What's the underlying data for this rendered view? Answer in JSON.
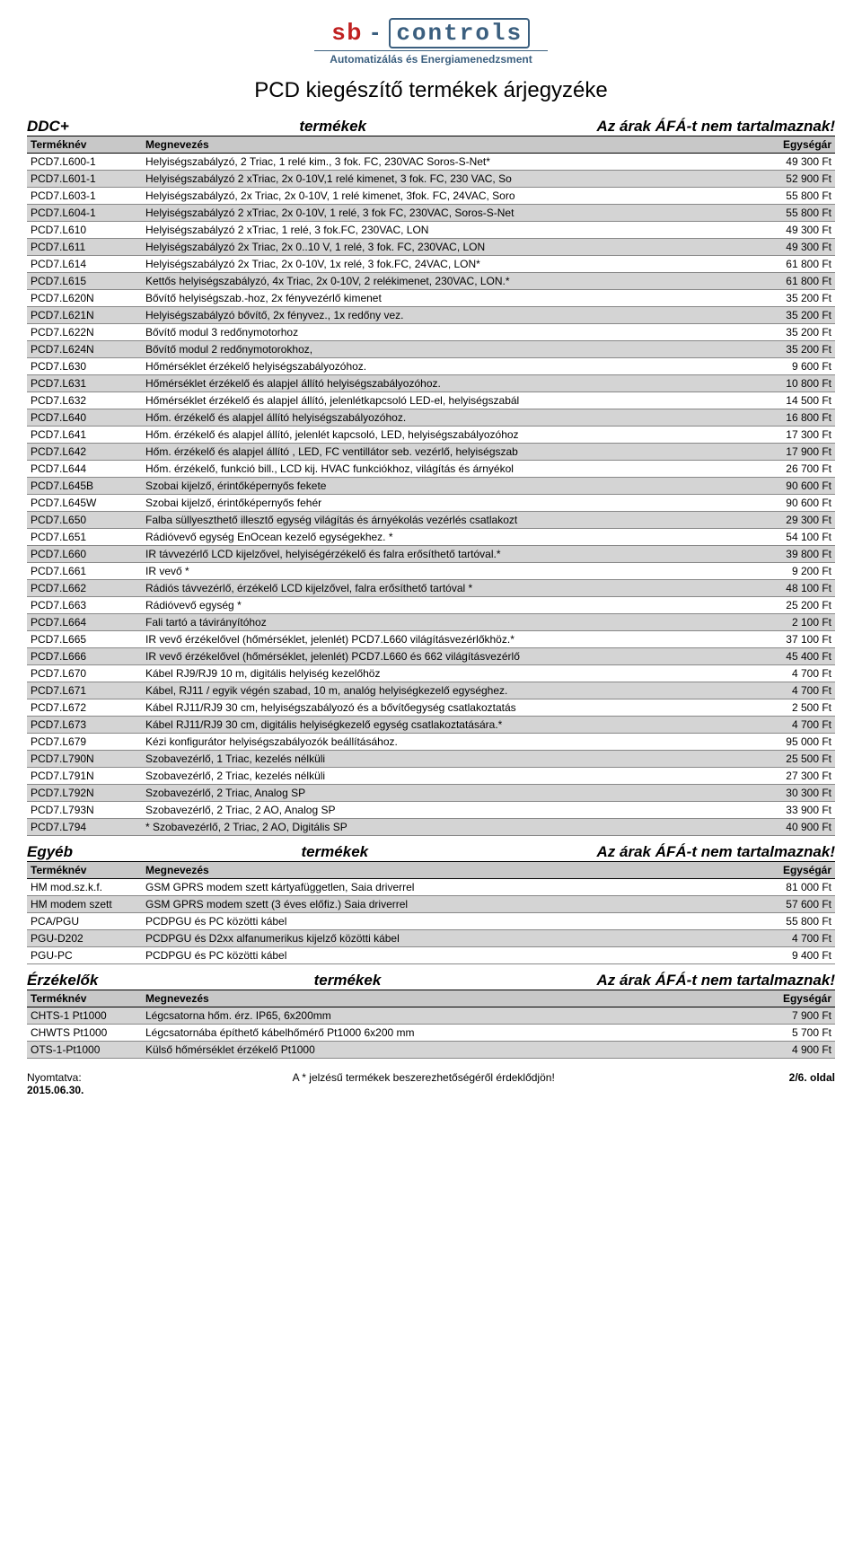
{
  "logo": {
    "sb": "sb",
    "dash": " - ",
    "controls": "controls",
    "tagline": "Automatizálás és Energiamenedzsment"
  },
  "page_title": "PCD kiegészítő termékek árjegyzéke",
  "column_headers": {
    "c0": "Terméknév",
    "c1": "Megnevezés",
    "c2": "Egységár"
  },
  "sections": [
    {
      "left": "DDC+",
      "mid": "termékek",
      "right": "Az árak ÁFÁ-t nem tartalmaznak!",
      "rows": [
        {
          "shade": false,
          "c0": "PCD7.L600-1",
          "c1": "Helyiségszabályzó, 2 Triac, 1 relé kim., 3 fok. FC, 230VAC Soros-S-Net*",
          "c2": "49 300 Ft"
        },
        {
          "shade": true,
          "c0": "PCD7.L601-1",
          "c1": "Helyiségszabályzó 2 xTriac, 2x 0-10V,1 relé kimenet, 3 fok. FC, 230 VAC, So",
          "c2": "52 900 Ft"
        },
        {
          "shade": false,
          "c0": "PCD7.L603-1",
          "c1": "Helyiségszabályzó, 2x Triac, 2x 0-10V, 1 relé kimenet, 3fok. FC, 24VAC, Soro",
          "c2": "55 800 Ft"
        },
        {
          "shade": true,
          "c0": "PCD7.L604-1",
          "c1": "Helyiségszabályzó 2 xTriac, 2x 0-10V, 1 relé, 3 fok FC, 230VAC, Soros-S-Net",
          "c2": "55 800 Ft"
        },
        {
          "shade": false,
          "c0": "PCD7.L610",
          "c1": "Helyiségszabályzó 2 xTriac, 1 relé, 3 fok.FC, 230VAC, LON",
          "c2": "49 300 Ft"
        },
        {
          "shade": true,
          "c0": "PCD7.L611",
          "c1": "Helyiségszabályzó 2x Triac, 2x 0..10 V, 1 relé, 3 fok. FC, 230VAC, LON",
          "c2": "49 300 Ft"
        },
        {
          "shade": false,
          "c0": "PCD7.L614",
          "c1": "Helyiségszabályzó 2x Triac, 2x 0-10V, 1x relé, 3 fok.FC, 24VAC, LON*",
          "c2": "61 800 Ft"
        },
        {
          "shade": true,
          "c0": "PCD7.L615",
          "c1": "Kettős helyiségszabályzó, 4x Triac, 2x 0-10V, 2 relékimenet, 230VAC, LON.*",
          "c2": "61 800 Ft"
        },
        {
          "shade": false,
          "c0": "PCD7.L620N",
          "c1": "Bővítő helyiségszab.-hoz, 2x fényvezérlő kimenet",
          "c2": "35 200 Ft"
        },
        {
          "shade": true,
          "c0": "PCD7.L621N",
          "c1": "Helyiségszabályzó bővítő, 2x fényvez., 1x redőny vez.",
          "c2": "35 200 Ft"
        },
        {
          "shade": false,
          "c0": "PCD7.L622N",
          "c1": "Bővítő modul 3 redőnymotorhoz",
          "c2": "35 200 Ft"
        },
        {
          "shade": true,
          "c0": "PCD7.L624N",
          "c1": "Bővítő modul 2 redőnymotorokhoz,",
          "c2": "35 200 Ft"
        },
        {
          "shade": false,
          "c0": "PCD7.L630",
          "c1": "Hőmérséklet érzékelő helyiségszabályozóhoz.",
          "c2": "9 600 Ft"
        },
        {
          "shade": true,
          "c0": "PCD7.L631",
          "c1": "Hőmérséklet érzékelő  és  alapjel állító helyiségszabályozóhoz.",
          "c2": "10 800 Ft"
        },
        {
          "shade": false,
          "c0": "PCD7.L632",
          "c1": "Hőmérséklet érzékelő és alapjel állító, jelenlétkapcsoló LED-el, helyiségszabál",
          "c2": "14 500 Ft"
        },
        {
          "shade": true,
          "c0": "PCD7.L640",
          "c1": "Hőm. érzékelő és alapjel állító helyiségszabályozóhoz.",
          "c2": "16 800 Ft"
        },
        {
          "shade": false,
          "c0": "PCD7.L641",
          "c1": "Hőm. érzékelő és alapjel állító,  jelenlét kapcsoló, LED, helyiségszabályozóhoz",
          "c2": "17 300 Ft"
        },
        {
          "shade": true,
          "c0": "PCD7.L642",
          "c1": "Hőm. érzékelő és alapjel állító , LED, FC ventillátor seb. vezérlő, helyiségszab",
          "c2": "17 900 Ft"
        },
        {
          "shade": false,
          "c0": "PCD7.L644",
          "c1": "Hőm. érzékelő, funkció bill., LCD kij. HVAC funkciókhoz, világítás és árnyékol",
          "c2": "26 700 Ft"
        },
        {
          "shade": true,
          "c0": "PCD7.L645B",
          "c1": "Szobai kijelző, érintőképernyős fekete",
          "c2": "90 600 Ft"
        },
        {
          "shade": false,
          "c0": "PCD7.L645W",
          "c1": "Szobai kijelző, érintőképernyős fehér",
          "c2": "90 600 Ft"
        },
        {
          "shade": true,
          "c0": "PCD7.L650",
          "c1": "Falba süllyeszthető illesztő egység világítás és árnyékolás vezérlés csatlakozt",
          "c2": "29 300 Ft"
        },
        {
          "shade": false,
          "c0": "PCD7.L651",
          "c1": "Rádióvevő egység EnOcean kezelő egységekhez. *",
          "c2": "54 100 Ft"
        },
        {
          "shade": true,
          "c0": "PCD7.L660",
          "c1": "IR távvezérlő LCD kijelzővel, helyiségérzékelő és falra erősíthető tartóval.*",
          "c2": "39 800 Ft"
        },
        {
          "shade": false,
          "c0": "PCD7.L661",
          "c1": "IR vevő *",
          "c2": "9 200 Ft"
        },
        {
          "shade": true,
          "c0": "PCD7.L662",
          "c1": "Rádiós távvezérlő, érzékelő LCD kijelzővel, falra erősíthető tartóval *",
          "c2": "48 100 Ft"
        },
        {
          "shade": false,
          "c0": "PCD7.L663",
          "c1": "Rádióvevő egység *",
          "c2": "25 200 Ft"
        },
        {
          "shade": true,
          "c0": "PCD7.L664",
          "c1": "Fali tartó a távirányítóhoz",
          "c2": "2 100 Ft"
        },
        {
          "shade": false,
          "c0": "PCD7.L665",
          "c1": "IR vevő érzékelővel (hőmérséklet, jelenlét) PCD7.L660 világításvezérlőkhöz.*",
          "c2": "37 100 Ft"
        },
        {
          "shade": true,
          "c0": "PCD7.L666",
          "c1": "IR vevő érzékelővel (hőmérséklet, jelenlét) PCD7.L660 és 662 világításvezérlő",
          "c2": "45 400 Ft"
        },
        {
          "shade": false,
          "c0": "PCD7.L670",
          "c1": "Kábel RJ9/RJ9 10 m, digitális helyiség kezelőhöz",
          "c2": "4 700 Ft"
        },
        {
          "shade": true,
          "c0": "PCD7.L671",
          "c1": "Kábel,  RJ11 / egyik végén szabad, 10 m, analóg helyiségkezelő egységhez.",
          "c2": "4 700 Ft"
        },
        {
          "shade": false,
          "c0": "PCD7.L672",
          "c1": "Kábel RJ11/RJ9 30 cm, helyiségszabályozó és a bővítőegység csatlakoztatás",
          "c2": "2 500 Ft"
        },
        {
          "shade": true,
          "c0": "PCD7.L673",
          "c1": "Kábel RJ11/RJ9 30 cm, digitális helyiségkezelő egység csatlakoztatására.*",
          "c2": "4 700 Ft"
        },
        {
          "shade": false,
          "c0": "PCD7.L679",
          "c1": "Kézi konfigurátor helyiségszabályozók beállításához.",
          "c2": "95 000 Ft"
        },
        {
          "shade": true,
          "c0": "PCD7.L790N",
          "c1": "Szobavezérlő, 1 Triac, kezelés nélküli",
          "c2": "25 500 Ft"
        },
        {
          "shade": false,
          "c0": "PCD7.L791N",
          "c1": "Szobavezérlő, 2 Triac, kezelés nélküli",
          "c2": "27 300 Ft"
        },
        {
          "shade": true,
          "c0": "PCD7.L792N",
          "c1": "Szobavezérlő, 2 Triac, Analog SP",
          "c2": "30 300 Ft"
        },
        {
          "shade": false,
          "c0": "PCD7.L793N",
          "c1": "Szobavezérlő, 2 Triac, 2 AO, Analog SP",
          "c2": "33 900 Ft"
        },
        {
          "shade": true,
          "c0": "PCD7.L794",
          "c1": "* Szobavezérlő, 2 Triac, 2 AO, Digitális SP",
          "c2": "40 900 Ft"
        }
      ]
    },
    {
      "left": "Egyéb",
      "mid": "termékek",
      "right": "Az árak ÁFÁ-t nem tartalmaznak!",
      "rows": [
        {
          "shade": false,
          "c0": "HM mod.sz.k.f.",
          "c1": "GSM GPRS modem szett kártyafüggetlen, Saia driverrel",
          "c2": "81 000 Ft"
        },
        {
          "shade": true,
          "c0": "HM modem szett",
          "c1": "GSM GPRS modem szett (3 éves előfiz.) Saia driverrel",
          "c2": "57 600 Ft"
        },
        {
          "shade": false,
          "c0": "PCA/PGU",
          "c1": "PCDPGU és PC közötti kábel",
          "c2": "55 800 Ft"
        },
        {
          "shade": true,
          "c0": "PGU-D202",
          "c1": "PCDPGU és D2xx alfanumerikus kijelző közötti kábel",
          "c2": "4 700 Ft"
        },
        {
          "shade": false,
          "c0": "PGU-PC",
          "c1": "PCDPGU és PC közötti kábel",
          "c2": "9 400 Ft"
        }
      ]
    },
    {
      "left": "Érzékelők",
      "mid": "termékek",
      "right": "Az árak ÁFÁ-t nem tartalmaznak!",
      "rows": [
        {
          "shade": true,
          "c0": "CHTS-1 Pt1000",
          "c1": "Légcsatorna hőm. érz. IP65, 6x200mm",
          "c2": "7 900 Ft"
        },
        {
          "shade": false,
          "c0": "CHWTS Pt1000",
          "c1": "Légcsatornába építhető kábelhőmérő Pt1000  6x200 mm",
          "c2": "5 700 Ft"
        },
        {
          "shade": true,
          "c0": "OTS-1-Pt1000",
          "c1": "Külső hőmérséklet érzékelő Pt1000",
          "c2": "4 900 Ft"
        }
      ]
    }
  ],
  "footer": {
    "printed_label": "Nyomtatva:",
    "date": "2015.06.30.",
    "note": "A * jelzésű termékek beszerezhetőségéről érdeklődjön!",
    "page": "2/6. oldal"
  },
  "colors": {
    "shade_bg": "#d4d4d4",
    "header_bg": "#c8c8c8",
    "logo_red": "#c02020",
    "logo_blue": "#3b5f7f"
  }
}
